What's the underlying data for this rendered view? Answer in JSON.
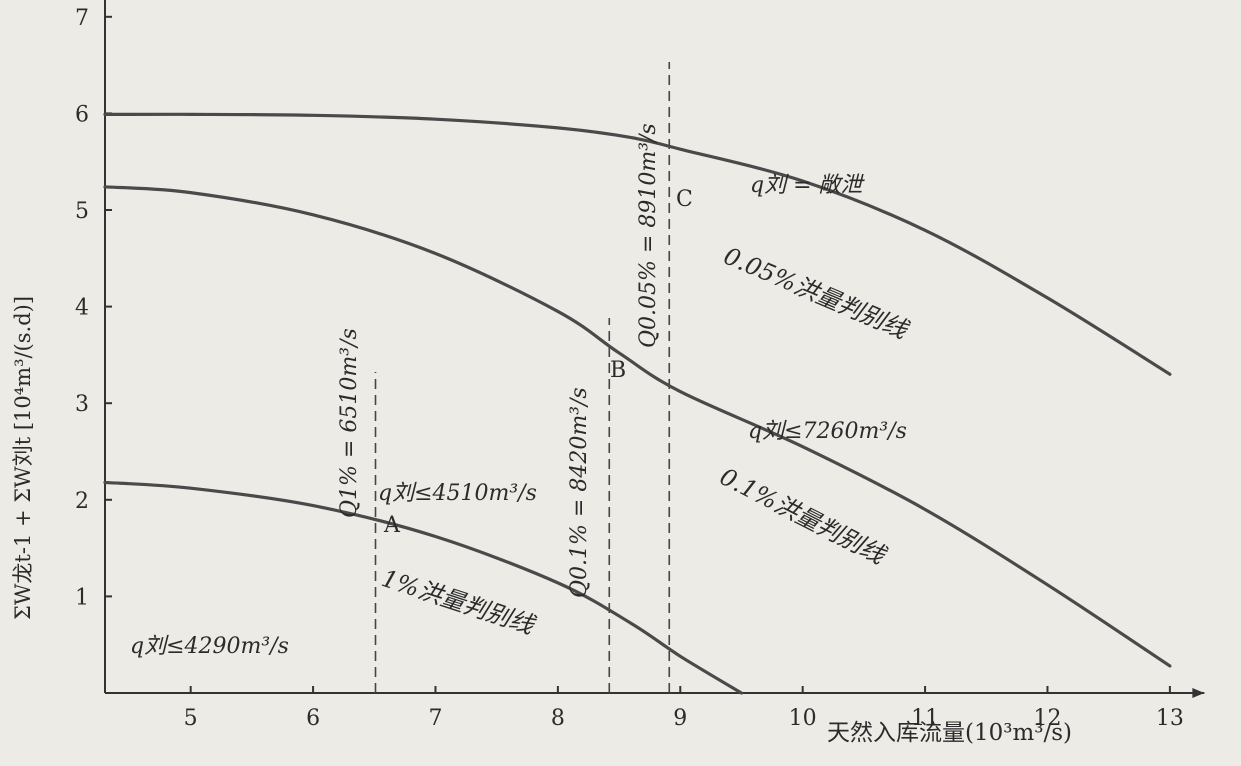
{
  "chart_data": {
    "type": "line",
    "xlabel": "天然入库流量(10³m³/s)",
    "ylabel": "ΣW龙t-1 + ΣW刘t [10⁴m³/(s.d)]",
    "xlim": [
      4.3,
      13.2
    ],
    "ylim": [
      0,
      7.8
    ],
    "x_ticks": [
      5,
      6,
      7,
      8,
      9,
      10,
      11,
      12,
      13
    ],
    "y_ticks": [
      1,
      2,
      3,
      4,
      5,
      6,
      7
    ],
    "grid": false,
    "series": [
      {
        "name": "1%洪量判别线",
        "x": [
          4.3,
          5,
          6,
          7,
          8,
          8.6,
          9,
          9.5
        ],
        "y": [
          2.18,
          2.12,
          1.94,
          1.62,
          1.14,
          0.72,
          0.38,
          0.0
        ]
      },
      {
        "name": "0.1%洪量判别线",
        "x": [
          4.3,
          5,
          6,
          7,
          8,
          8.5,
          9,
          10,
          11,
          12,
          13
        ],
        "y": [
          5.24,
          5.18,
          4.95,
          4.55,
          3.95,
          3.52,
          3.12,
          2.55,
          1.9,
          1.12,
          0.28
        ]
      },
      {
        "name": "0.05%洪量判别线",
        "x": [
          4.3,
          5,
          6,
          7,
          8,
          8.6,
          9,
          10,
          11,
          12,
          13
        ],
        "y": [
          5.99,
          5.99,
          5.98,
          5.94,
          5.85,
          5.75,
          5.63,
          5.3,
          4.79,
          4.09,
          3.3
        ]
      }
    ],
    "vertical_lines": [
      {
        "x": 6.51,
        "label": "Q1% = 6510m³/s"
      },
      {
        "x": 8.42,
        "label": "Q0.1% = 8420m³/s"
      },
      {
        "x": 8.91,
        "label": "Q0.05% = 8910m³/s"
      }
    ],
    "point_labels": [
      "A",
      "B",
      "C"
    ],
    "region_labels": [
      "q刘≤4290m³/s",
      "q刘≤4510m³/s",
      "q刘≤7260m³/s",
      "q刘 = 敞泄"
    ]
  }
}
